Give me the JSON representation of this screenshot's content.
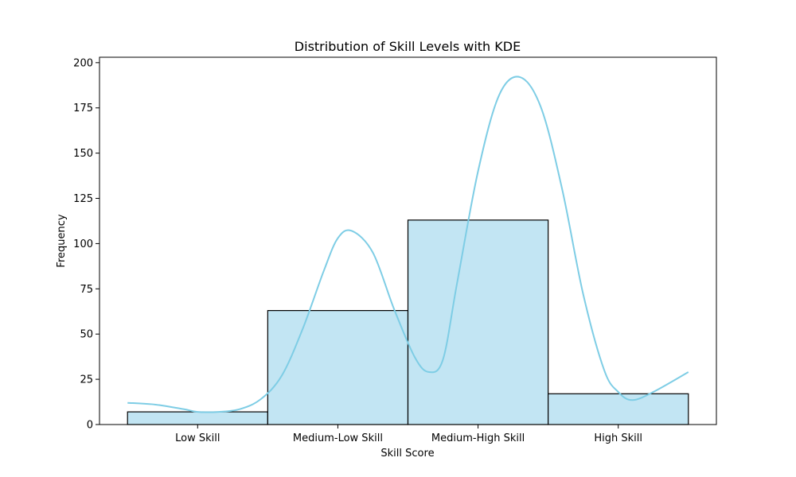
{
  "chart_data": {
    "type": "bar",
    "title": "Distribution of Skill Levels with KDE",
    "xlabel": "Skill Score",
    "ylabel": "Frequency",
    "categories": [
      "Low Skill",
      "Medium-Low Skill",
      "Medium-High Skill",
      "High Skill"
    ],
    "values": [
      7,
      63,
      113,
      17
    ],
    "ylim": [
      0,
      203
    ],
    "yticks": [
      "0",
      "25",
      "50",
      "75",
      "100",
      "125",
      "150",
      "175",
      "200"
    ],
    "grid": false,
    "legend": "none",
    "kde": {
      "x": [
        -0.5,
        -0.3,
        -0.1,
        0.0,
        0.15,
        0.3,
        0.45,
        0.6,
        0.75,
        0.9,
        1.0,
        1.1,
        1.25,
        1.4,
        1.55,
        1.65,
        1.75,
        1.85,
        2.0,
        2.15,
        2.3,
        2.45,
        2.6,
        2.75,
        2.9,
        3.0,
        3.1,
        3.25,
        3.5
      ],
      "y": [
        12,
        11,
        8.5,
        7,
        7,
        8.5,
        14,
        27,
        53,
        85,
        103,
        107,
        95,
        64,
        37,
        29,
        36,
        78,
        140,
        182,
        192,
        175,
        130,
        72,
        30,
        18,
        13.5,
        18,
        29
      ]
    },
    "colors": {
      "bar_fill": "#c2e5f3",
      "bar_edge": "#000000",
      "kde_line": "#7ecde5"
    }
  }
}
